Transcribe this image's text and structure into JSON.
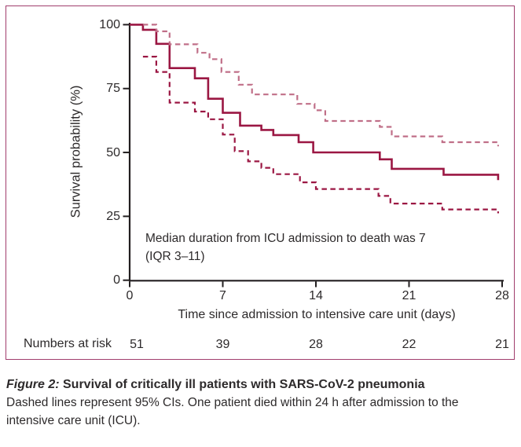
{
  "figure": {
    "caption": {
      "title_prefix": "Figure 2:",
      "title_rest": " Survival of critically ill patients with SARS-CoV-2 pneumonia",
      "body": "Dashed lines represent 95% CIs. One patient died within 24 h after admission to the intensive care unit (ICU)."
    }
  },
  "chart_data": {
    "type": "line",
    "subtype": "kaplan-meier-step",
    "xlabel": "Time since admission to intensive care unit (days)",
    "ylabel": "Survival probability (%)",
    "xlim": [
      0,
      28
    ],
    "ylim": [
      0,
      100
    ],
    "x_ticks": [
      0,
      7,
      14,
      21,
      28
    ],
    "y_ticks": [
      100,
      75,
      50,
      25,
      0
    ],
    "grid": false,
    "legend": "none",
    "annotation": {
      "line1": "Median duration from ICU admission to death was 7",
      "line2": "(IQR 3–11)"
    },
    "layout": {
      "axis_color": "#231f20",
      "panel_border_color": "#a13d6d",
      "solid_color": "#9b1743",
      "upper_ci_color": "#c06f88",
      "lower_ci_color": "#9b1743"
    },
    "series": [
      {
        "name": "survival",
        "style": "solid",
        "color": "#9b1743",
        "points": [
          [
            0,
            100
          ],
          [
            1,
            98
          ],
          [
            2,
            92.5
          ],
          [
            3,
            83
          ],
          [
            4.9,
            79
          ],
          [
            5.9,
            71
          ],
          [
            7,
            65.5
          ],
          [
            8.3,
            60.5
          ],
          [
            9.9,
            58.8
          ],
          [
            10.8,
            56.8
          ],
          [
            12.7,
            54
          ],
          [
            13.8,
            50
          ],
          [
            18.8,
            47.3
          ],
          [
            19.7,
            43.6
          ],
          [
            23.6,
            41.3
          ],
          [
            27.7,
            39.2
          ]
        ]
      },
      {
        "name": "upper-95ci",
        "style": "dashed",
        "color": "#c06f88",
        "points": [
          [
            1,
            100
          ],
          [
            2,
            97.4
          ],
          [
            3,
            92.3
          ],
          [
            5.1,
            89
          ],
          [
            6,
            86.5
          ],
          [
            6.9,
            81.5
          ],
          [
            8.2,
            76.5
          ],
          [
            9.2,
            72.7
          ],
          [
            12.6,
            69
          ],
          [
            13.9,
            66.5
          ],
          [
            14.7,
            62.3
          ],
          [
            18.8,
            60
          ],
          [
            19.7,
            56.3
          ],
          [
            23.5,
            54
          ],
          [
            27.7,
            52.4
          ]
        ]
      },
      {
        "name": "lower-95ci",
        "style": "dashed",
        "color": "#9b1743",
        "points": [
          [
            1,
            87.5
          ],
          [
            2,
            81.5
          ],
          [
            3,
            69.5
          ],
          [
            4.9,
            66
          ],
          [
            5.9,
            63
          ],
          [
            7,
            57
          ],
          [
            7.9,
            50.5
          ],
          [
            8.9,
            46.5
          ],
          [
            9.9,
            44
          ],
          [
            10.8,
            41.5
          ],
          [
            12.8,
            38.3
          ],
          [
            14,
            35.7
          ],
          [
            18.7,
            33
          ],
          [
            19.6,
            30
          ],
          [
            23.5,
            27.7
          ],
          [
            27.7,
            26.2
          ]
        ]
      }
    ],
    "numbers_at_risk": {
      "label": "Numbers at risk",
      "days": [
        0,
        7,
        14,
        21,
        28
      ],
      "values": [
        "51",
        "39",
        "28",
        "22",
        "21"
      ]
    }
  }
}
